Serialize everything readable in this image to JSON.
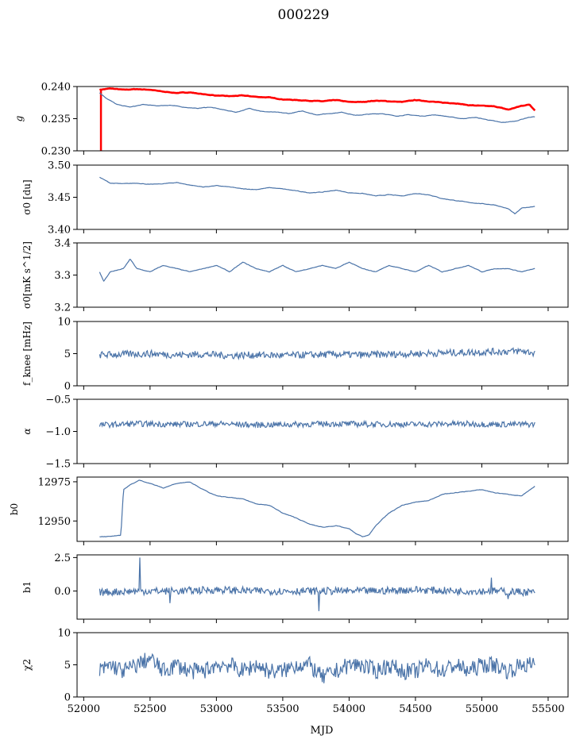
{
  "title": "000229",
  "xlabel": "MJD",
  "chart_data": [
    {
      "type": "line",
      "ylabel": "g",
      "ylim": [
        0.23,
        0.24
      ],
      "yticks": [
        "0.230",
        "0.235",
        "0.240"
      ],
      "ytick_values": [
        0.23,
        0.235,
        0.24
      ],
      "series": [
        {
          "color": "#ff0000",
          "x": [
            52120,
            52200,
            52300,
            52400,
            52500,
            52600,
            52700,
            52800,
            52900,
            53000,
            53100,
            53200,
            53300,
            53400,
            53500,
            53600,
            53700,
            53800,
            53900,
            54000,
            54100,
            54200,
            54300,
            54400,
            54500,
            54600,
            54700,
            54800,
            54900,
            55000,
            55100,
            55200,
            55300,
            55360,
            55400
          ],
          "y": [
            0.2395,
            0.2397,
            0.2395,
            0.2396,
            0.2395,
            0.2392,
            0.239,
            0.2391,
            0.2388,
            0.2386,
            0.2385,
            0.2386,
            0.2384,
            0.2383,
            0.238,
            0.2379,
            0.2378,
            0.2377,
            0.2379,
            0.2376,
            0.2376,
            0.2378,
            0.2377,
            0.2376,
            0.2379,
            0.2377,
            0.2375,
            0.2374,
            0.2371,
            0.237,
            0.2369,
            0.2364,
            0.237,
            0.2372,
            0.2363
          ]
        },
        {
          "color": "#4a73a8",
          "x": [
            52120,
            52170,
            52250,
            52350,
            52450,
            52550,
            52650,
            52750,
            52850,
            52950,
            53050,
            53150,
            53250,
            53350,
            53450,
            53550,
            53650,
            53750,
            53850,
            53950,
            54050,
            54150,
            54250,
            54350,
            54450,
            54550,
            54650,
            54750,
            54850,
            54950,
            55050,
            55150,
            55250,
            55350,
            55400
          ],
          "y": [
            0.239,
            0.2382,
            0.2372,
            0.2368,
            0.2372,
            0.237,
            0.2371,
            0.2368,
            0.2366,
            0.2368,
            0.2364,
            0.236,
            0.2366,
            0.2361,
            0.236,
            0.2358,
            0.2362,
            0.2356,
            0.2358,
            0.236,
            0.2355,
            0.2357,
            0.2358,
            0.2354,
            0.2356,
            0.2354,
            0.2356,
            0.2353,
            0.235,
            0.2352,
            0.2348,
            0.2344,
            0.2346,
            0.2352,
            0.2353
          ]
        }
      ]
    },
    {
      "type": "line",
      "ylabel": "σ0 [du]",
      "ylim": [
        3.4,
        3.5
      ],
      "yticks": [
        "3.40",
        "3.45",
        "3.50"
      ],
      "ytick_values": [
        3.4,
        3.45,
        3.5
      ],
      "series": [
        {
          "color": "#4a73a8",
          "x": [
            52120,
            52200,
            52300,
            52400,
            52500,
            52600,
            52700,
            52800,
            52900,
            53000,
            53100,
            53200,
            53300,
            53400,
            53500,
            53600,
            53700,
            53800,
            53900,
            54000,
            54100,
            54200,
            54300,
            54400,
            54500,
            54600,
            54700,
            54800,
            54900,
            55000,
            55100,
            55200,
            55250,
            55300,
            55400
          ],
          "y": [
            3.481,
            3.472,
            3.471,
            3.472,
            3.47,
            3.471,
            3.473,
            3.469,
            3.466,
            3.468,
            3.466,
            3.463,
            3.462,
            3.465,
            3.463,
            3.46,
            3.457,
            3.458,
            3.461,
            3.457,
            3.456,
            3.452,
            3.454,
            3.452,
            3.456,
            3.454,
            3.448,
            3.445,
            3.442,
            3.44,
            3.438,
            3.432,
            3.424,
            3.433,
            3.436
          ]
        }
      ]
    },
    {
      "type": "line",
      "ylabel": "σ0[mK s^1/2]",
      "ylim": [
        3.2,
        3.4
      ],
      "yticks": [
        "3.2",
        "3.3",
        "3.4"
      ],
      "ytick_values": [
        3.2,
        3.3,
        3.4
      ],
      "series": [
        {
          "color": "#4a73a8",
          "x": [
            52120,
            52150,
            52200,
            52300,
            52350,
            52400,
            52500,
            52600,
            52700,
            52800,
            52900,
            53000,
            53100,
            53200,
            53300,
            53400,
            53500,
            53600,
            53700,
            53800,
            53900,
            54000,
            54100,
            54200,
            54300,
            54400,
            54500,
            54600,
            54700,
            54800,
            54900,
            55000,
            55100,
            55200,
            55300,
            55400
          ],
          "y": [
            3.31,
            3.28,
            3.31,
            3.32,
            3.35,
            3.32,
            3.31,
            3.33,
            3.32,
            3.31,
            3.32,
            3.33,
            3.31,
            3.34,
            3.32,
            3.31,
            3.33,
            3.31,
            3.32,
            3.33,
            3.32,
            3.34,
            3.32,
            3.31,
            3.33,
            3.32,
            3.31,
            3.33,
            3.31,
            3.32,
            3.33,
            3.31,
            3.32,
            3.32,
            3.31,
            3.32
          ]
        }
      ]
    },
    {
      "type": "line",
      "ylabel": "f_knee [mHz]",
      "ylim": [
        0,
        10
      ],
      "yticks": [
        "0",
        "5",
        "10"
      ],
      "ytick_values": [
        0,
        5,
        10
      ],
      "series": [
        {
          "color": "#4a73a8",
          "x": [
            52120,
            52300,
            52500,
            52700,
            52900,
            53100,
            53300,
            53500,
            53700,
            53900,
            54100,
            54300,
            54500,
            54700,
            54900,
            55100,
            55300,
            55400
          ],
          "y": [
            4.8,
            4.9,
            5.0,
            4.8,
            4.9,
            4.7,
            4.8,
            4.7,
            4.8,
            4.9,
            4.8,
            4.9,
            5.0,
            5.1,
            5.2,
            5.3,
            5.4,
            5.1
          ]
        }
      ],
      "noise": 0.55
    },
    {
      "type": "line",
      "ylabel": "α",
      "ylim": [
        -1.5,
        -0.5
      ],
      "yticks": [
        "−1.5",
        "−1.0",
        "−0.5"
      ],
      "ytick_values": [
        -1.5,
        -1.0,
        -0.5
      ],
      "series": [
        {
          "color": "#4a73a8",
          "x": [
            52120,
            52400,
            52700,
            53000,
            53300,
            53600,
            53900,
            54200,
            54500,
            54800,
            55100,
            55400
          ],
          "y": [
            -0.9,
            -0.88,
            -0.89,
            -0.88,
            -0.9,
            -0.89,
            -0.88,
            -0.89,
            -0.89,
            -0.88,
            -0.89,
            -0.89
          ]
        }
      ],
      "noise": 0.045
    },
    {
      "type": "line",
      "ylabel": "b0",
      "ylim": [
        12937,
        12978
      ],
      "yticks": [
        "12950",
        "12975"
      ],
      "ytick_values": [
        12950,
        12975
      ],
      "series": [
        {
          "color": "#4a73a8",
          "x": [
            52120,
            52170,
            52280,
            52300,
            52350,
            52420,
            52500,
            52600,
            52700,
            52800,
            52900,
            53000,
            53100,
            53200,
            53300,
            53400,
            53500,
            53600,
            53700,
            53800,
            53900,
            54000,
            54050,
            54100,
            54150,
            54200,
            54300,
            54400,
            54500,
            54600,
            54700,
            54800,
            54900,
            55000,
            55100,
            55200,
            55300,
            55400
          ],
          "y": [
            12940,
            12940,
            12941,
            12970,
            12973,
            12976,
            12974,
            12971,
            12974,
            12975,
            12970,
            12966,
            12965,
            12964,
            12961,
            12960,
            12955,
            12952,
            12948,
            12946,
            12947,
            12945,
            12942,
            12940,
            12941,
            12947,
            12955,
            12960,
            12962,
            12963,
            12967,
            12968,
            12969,
            12970,
            12968,
            12967,
            12966,
            12972
          ]
        }
      ]
    },
    {
      "type": "line",
      "ylabel": "b1",
      "ylim": [
        -2.1,
        2.7
      ],
      "yticks": [
        "0.0",
        "2.5"
      ],
      "ytick_values": [
        0.0,
        2.5
      ],
      "series": [
        {
          "color": "#4a73a8",
          "x": [
            52120,
            52400,
            52700,
            53000,
            53300,
            53600,
            53900,
            54200,
            54500,
            54800,
            55100,
            55400
          ],
          "y": [
            -0.1,
            0.0,
            0.0,
            0.1,
            0.0,
            0.0,
            0.0,
            0.0,
            0.1,
            0.0,
            0.0,
            -0.1
          ]
        }
      ],
      "noise": 0.28,
      "spikes": [
        [
          52420,
          2.5
        ],
        [
          53770,
          -1.5
        ],
        [
          52650,
          -0.9
        ],
        [
          55070,
          1.0
        ],
        [
          55200,
          -0.6
        ]
      ]
    },
    {
      "type": "line",
      "ylabel": "χ2",
      "ylim": [
        0,
        10
      ],
      "yticks": [
        "0",
        "5",
        "10"
      ],
      "ytick_values": [
        0,
        5,
        10
      ],
      "series": [
        {
          "color": "#4a73a8",
          "x": [
            52120,
            52200,
            52300,
            52400,
            52500,
            52600,
            52700,
            52800,
            52900,
            53000,
            53100,
            53200,
            53300,
            53400,
            53500,
            53600,
            53700,
            53800,
            53900,
            54000,
            54100,
            54200,
            54300,
            54400,
            54500,
            54600,
            54700,
            54800,
            54900,
            55000,
            55100,
            55200,
            55300,
            55400
          ],
          "y": [
            4,
            5,
            4,
            5,
            6,
            4,
            5,
            4,
            4,
            5,
            5,
            4,
            5,
            4,
            4,
            5,
            5,
            3,
            4,
            5,
            5,
            4,
            5,
            4,
            4,
            5,
            4,
            5,
            4,
            5,
            5,
            4,
            5,
            5
          ]
        }
      ],
      "noise": 1.3
    },
    {
      "xlim": [
        51950,
        55650
      ],
      "xticks": [
        "52000",
        "52500",
        "53000",
        "53500",
        "54000",
        "54500",
        "55000",
        "55500"
      ],
      "xtick_values": [
        52000,
        52500,
        53000,
        53500,
        54000,
        54500,
        55000,
        55500
      ]
    }
  ]
}
